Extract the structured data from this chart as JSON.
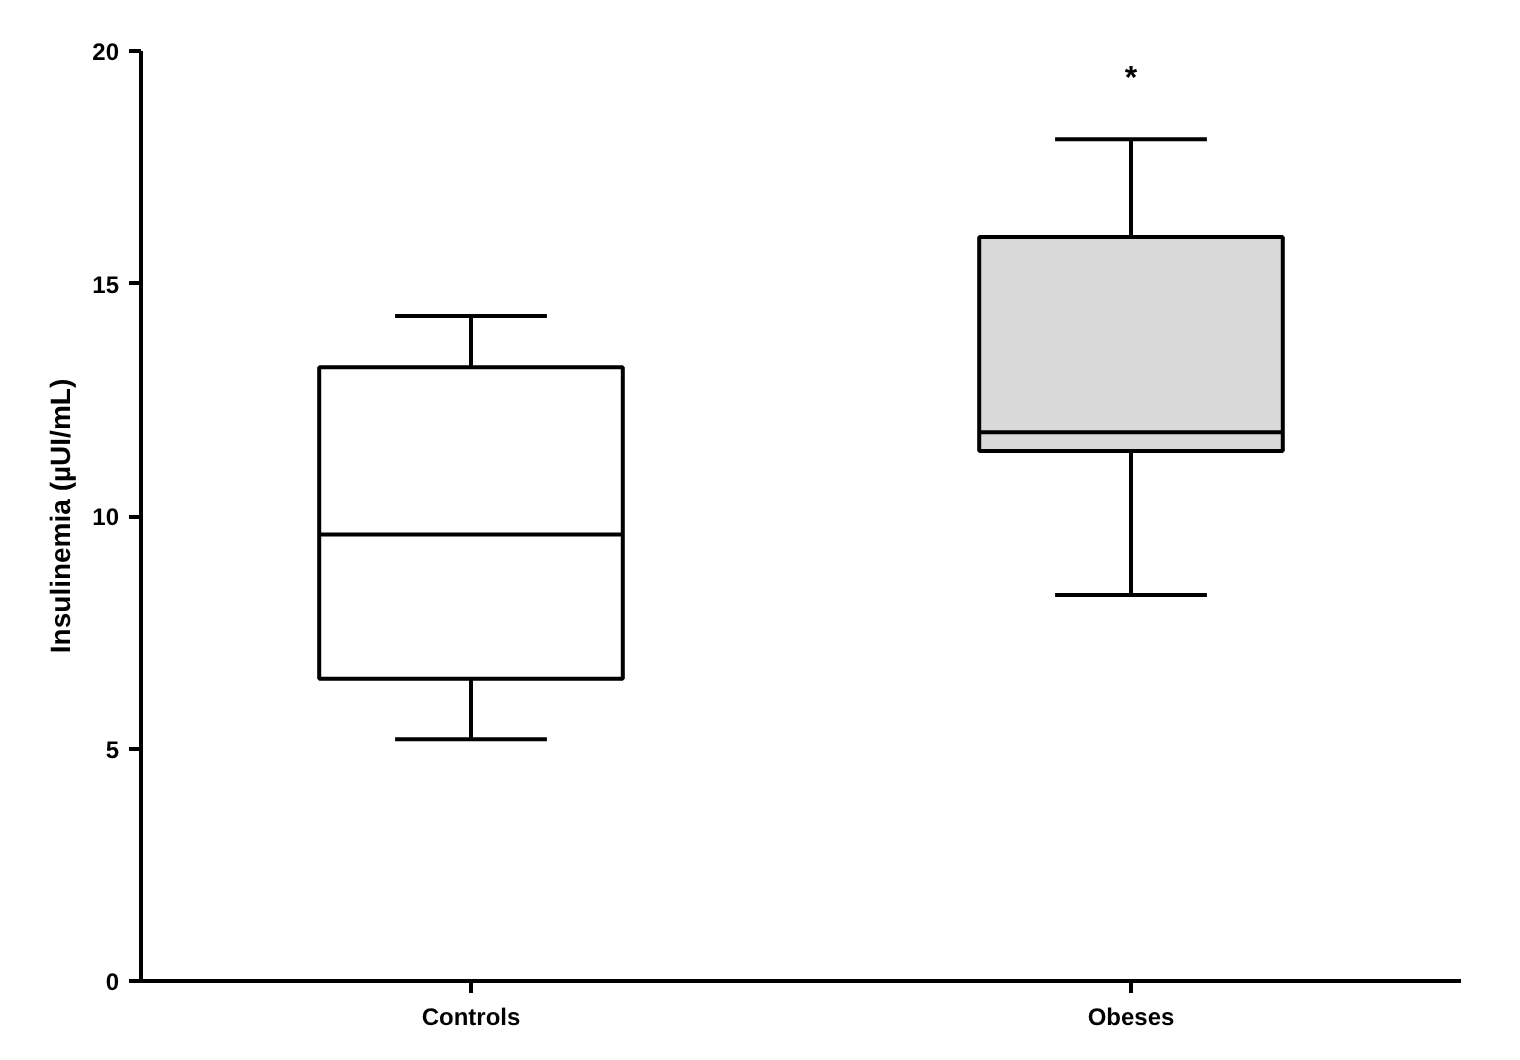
{
  "chart_data": {
    "type": "box",
    "ylabel": "Insulinemia (µUI/mL)",
    "categories": [
      "Controls",
      "Obeses"
    ],
    "boxes": [
      {
        "low": 5.2,
        "q1": 6.5,
        "median": 9.6,
        "q3": 13.2,
        "high": 14.3
      },
      {
        "low": 8.3,
        "q1": 11.4,
        "median": 11.8,
        "q3": 16.0,
        "high": 18.1
      }
    ],
    "colors": [
      "#ffffff",
      "#d9d9d9"
    ],
    "ylim": [
      0,
      20
    ],
    "yticks": [
      0,
      5,
      10,
      15,
      20
    ],
    "grid": false,
    "annotations": [
      "*"
    ]
  }
}
